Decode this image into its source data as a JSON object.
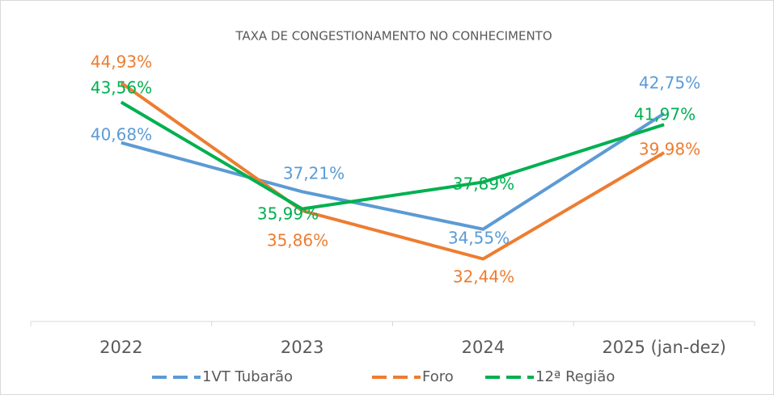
{
  "chart_data": {
    "type": "line",
    "title": "TAXA DE CONGESTIONAMENTO NO CONHECIMENTO",
    "categories": [
      "2022",
      "2023",
      "2024",
      "2025 (jan-dez)"
    ],
    "series": [
      {
        "name": "1VT Tubarão",
        "color": "#5b9bd5",
        "values": [
          40.68,
          37.21,
          34.55,
          42.75
        ],
        "value_labels": [
          "40,68%",
          "37,21%",
          "34,55%",
          "42,75%"
        ]
      },
      {
        "name": "Foro",
        "color": "#ed7d31",
        "values": [
          44.93,
          35.86,
          32.44,
          39.98
        ],
        "value_labels": [
          "44,93%",
          "35,86%",
          "32,44%",
          "39,98%"
        ]
      },
      {
        "name": "12ª Região",
        "color": "#00b050",
        "values": [
          43.56,
          35.99,
          37.89,
          41.97
        ],
        "value_labels": [
          "43,56%",
          "35,99%",
          "37,89%",
          "41,97%"
        ]
      }
    ],
    "ylim": [
      28,
      48
    ],
    "legend": "bottom"
  }
}
